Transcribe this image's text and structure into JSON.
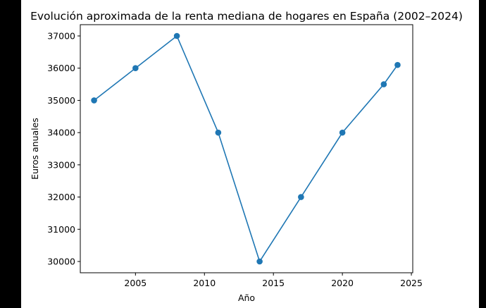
{
  "chart_data": {
    "type": "line",
    "title": "Evolución aproximada de la renta mediana de hogares en España (2002–2024)",
    "xlabel": "Año",
    "ylabel": "Euros anuales",
    "x": [
      2002,
      2005,
      2008,
      2011,
      2014,
      2017,
      2020,
      2023,
      2024
    ],
    "series": [
      {
        "values": [
          35000,
          36000,
          37000,
          34000,
          30000,
          32000,
          34000,
          35500,
          36100
        ]
      }
    ],
    "xlim": [
      2001.0,
      2025.1
    ],
    "ylim": [
      29650,
      37350
    ],
    "xticks": [
      2005,
      2010,
      2015,
      2020,
      2025
    ],
    "yticks": [
      30000,
      31000,
      32000,
      33000,
      34000,
      35000,
      36000,
      37000
    ],
    "grid": false,
    "legend": "none",
    "line_color": "#1f77b4",
    "marker": "circle"
  }
}
